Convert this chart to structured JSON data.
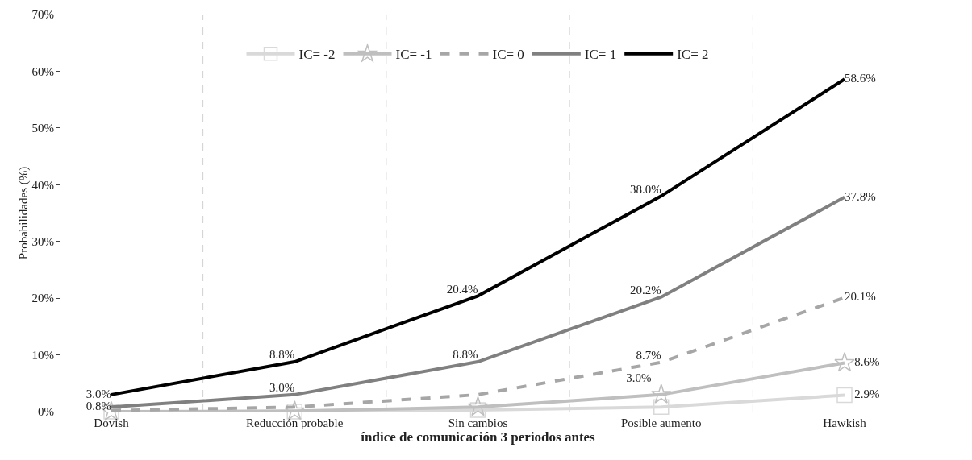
{
  "chart_data": {
    "type": "line",
    "xlabel": "índice de comunicación 3 periodos antes",
    "ylabel": "Probabilidades (%)",
    "categories": [
      "Dovish",
      "Reducción probable",
      "Sin cambios",
      "Posible aumento",
      "Hawkish"
    ],
    "series": [
      {
        "name": "IC= -2",
        "color": "#d9d9d9",
        "marker": "square",
        "values": [
          0,
          0,
          0.3,
          0.8,
          2.9
        ],
        "value_labels": [
          null,
          null,
          null,
          null,
          "2.9%"
        ]
      },
      {
        "name": "IC= -1",
        "color": "#bfbfbf",
        "marker": "star",
        "values": [
          0,
          0.1,
          0.8,
          3.0,
          8.6
        ],
        "value_labels": [
          null,
          null,
          null,
          "3.0%",
          "8.6%"
        ]
      },
      {
        "name": "IC= 0",
        "color": "#a6a6a6",
        "line_style": "dashed",
        "values": [
          0.2,
          0.8,
          3.0,
          8.7,
          20.1
        ],
        "value_labels": [
          null,
          null,
          null,
          "8.7%",
          "20.1%"
        ]
      },
      {
        "name": "IC= 1",
        "color": "#808080",
        "values": [
          0.8,
          3.0,
          8.8,
          20.2,
          37.8
        ],
        "value_labels": [
          "0.8%",
          "3.0%",
          "8.8%",
          "20.2%",
          "37.8%"
        ]
      },
      {
        "name": "IC= 2",
        "color": "#000000",
        "values": [
          3.0,
          8.8,
          20.4,
          38.0,
          58.6
        ],
        "value_labels": [
          "3.0%",
          "8.8%",
          "20.4%",
          "38.0%",
          "58.6%"
        ]
      }
    ],
    "ylim": [
      0,
      70
    ],
    "yticks": [
      {
        "value": 0,
        "label": "0%"
      },
      {
        "value": 10,
        "label": "10%"
      },
      {
        "value": 20,
        "label": "20%"
      },
      {
        "value": 30,
        "label": "30%"
      },
      {
        "value": 40,
        "label": "40%"
      },
      {
        "value": 50,
        "label": "50%"
      },
      {
        "value": 60,
        "label": "60%"
      },
      {
        "value": 70,
        "label": "70%"
      }
    ],
    "grid": "x",
    "legend": "top",
    "marker": "none",
    "line_style": "solid"
  }
}
